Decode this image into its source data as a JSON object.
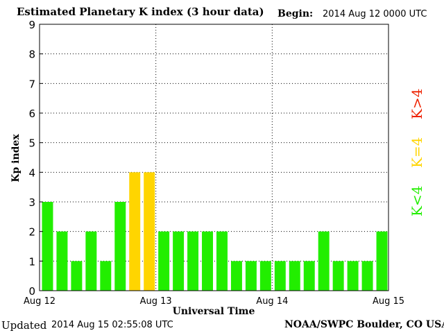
{
  "header": {
    "title": "Estimated Planetary K index (3 hour data)",
    "begin_label": "Begin:",
    "begin_value": "2014 Aug 12 0000 UTC"
  },
  "footer": {
    "updated_label": "Updated",
    "updated_value": "2014 Aug 15 02:55:08 UTC",
    "credit": "NOAA/SWPC Boulder, CO USA"
  },
  "legend": {
    "below": "K<4",
    "equal": "K=4",
    "above": "K>4"
  },
  "colors": {
    "below": "#22ee00",
    "equal": "#ffd500",
    "above": "#ee2200"
  },
  "chart_data": {
    "type": "bar",
    "title": "Estimated Planetary K index (3 hour data)",
    "xlabel": "Universal Time",
    "ylabel": "Kp index",
    "ylim": [
      0,
      9
    ],
    "yticks": [
      0,
      1,
      2,
      3,
      4,
      5,
      6,
      7,
      8,
      9
    ],
    "xticks": [
      "Aug 12",
      "Aug 13",
      "Aug 14",
      "Aug 15"
    ],
    "grid": true,
    "bar_interval_hours": 3,
    "values": [
      3,
      2,
      1,
      2,
      1,
      3,
      4,
      4,
      2,
      2,
      2,
      2,
      2,
      1,
      1,
      1,
      1,
      1,
      1,
      2,
      1,
      1,
      1,
      2
    ]
  }
}
